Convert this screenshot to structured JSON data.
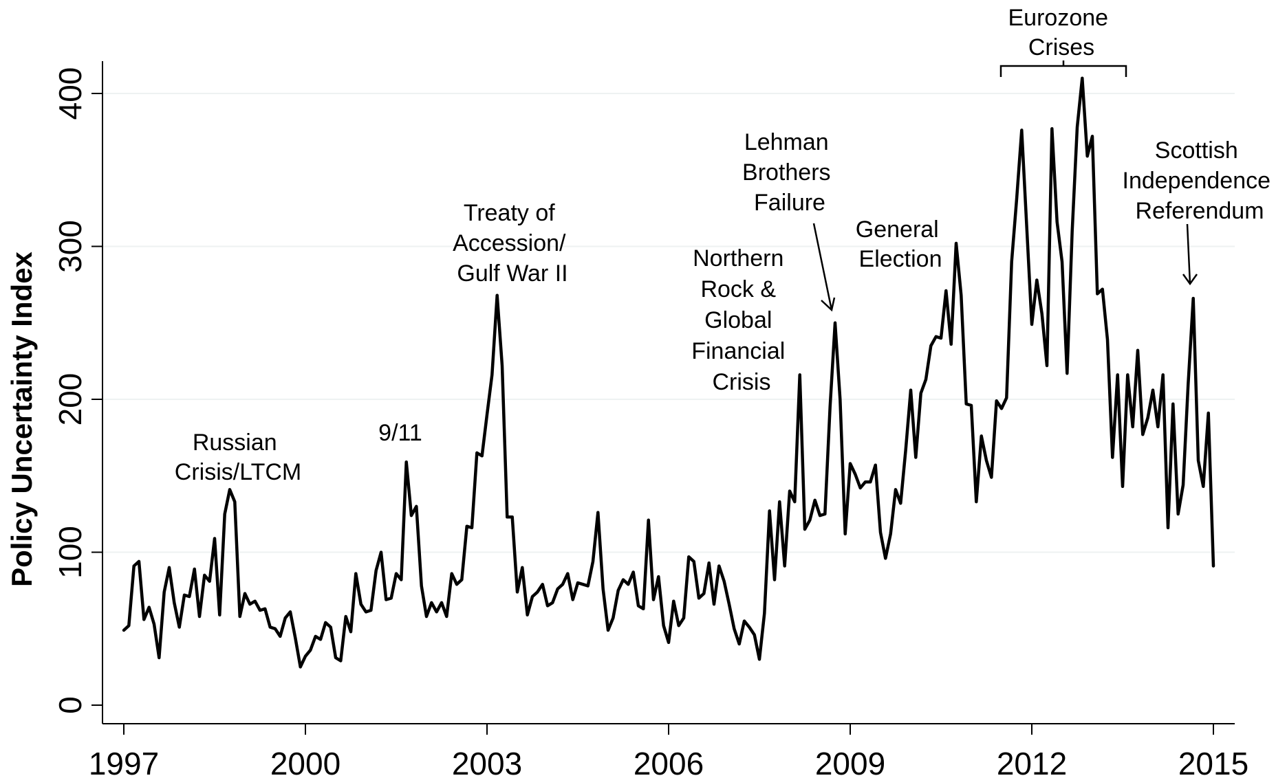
{
  "chart_data": {
    "type": "line",
    "title": "",
    "xlabel": "",
    "ylabel": "Policy Uncertainty Index",
    "xlim": [
      1997,
      2015.1
    ],
    "ylim": [
      -8,
      423
    ],
    "grid": true,
    "x_ticks": [
      1997,
      2000,
      2003,
      2006,
      2009,
      2012,
      2015
    ],
    "x_tick_labels": [
      "1997",
      "2000",
      "2003",
      "2006",
      "2009",
      "2012",
      "2015"
    ],
    "y_ticks": [
      0,
      100,
      200,
      300,
      400
    ],
    "y_tick_labels": [
      "0",
      "100",
      "200",
      "300",
      "400"
    ],
    "series": [
      {
        "frequency": "monthly",
        "start": "1997-01",
        "values": [
          49,
          52,
          91,
          94,
          56,
          64,
          53,
          31,
          74,
          90,
          67,
          51,
          72,
          71,
          89,
          58,
          85,
          81,
          109,
          59,
          125,
          141,
          133,
          58,
          73,
          66,
          68,
          62,
          63,
          51,
          50,
          45,
          57,
          61,
          44,
          25,
          32,
          36,
          45,
          43,
          54,
          51,
          31,
          29,
          58,
          48,
          86,
          66,
          61,
          62,
          88,
          100,
          69,
          70,
          86,
          82,
          159,
          124,
          130,
          78,
          58,
          67,
          61,
          67,
          58,
          86,
          79,
          82,
          117,
          116,
          165,
          163,
          190,
          216,
          268,
          222,
          123,
          123,
          74,
          90,
          59,
          71,
          74,
          79,
          65,
          67,
          76,
          79,
          86,
          69,
          80,
          79,
          78,
          94,
          126,
          76,
          49,
          57,
          75,
          82,
          79,
          87,
          65,
          63,
          121,
          69,
          84,
          52,
          41,
          68,
          52,
          57,
          97,
          94,
          70,
          73,
          93,
          66,
          91,
          81,
          66,
          50,
          40,
          55,
          51,
          46,
          30,
          60,
          127,
          82,
          133,
          91,
          140,
          133,
          216,
          115,
          121,
          134,
          124,
          125,
          195,
          250,
          200,
          112,
          158,
          151,
          142,
          146,
          146,
          157,
          113,
          96,
          112,
          141,
          132,
          167,
          206,
          162,
          204,
          213,
          235,
          241,
          240,
          271,
          236,
          302,
          268,
          197,
          196,
          133,
          176,
          160,
          149,
          199,
          194,
          201,
          290,
          331,
          376,
          312,
          249,
          278,
          256,
          222,
          377,
          316,
          290,
          217,
          310,
          378,
          410,
          359,
          372,
          269,
          272,
          239,
          162,
          216,
          143,
          216,
          182,
          232,
          177,
          188,
          206,
          182,
          216,
          116,
          197,
          125,
          144,
          210,
          266,
          160,
          143,
          191,
          91
        ]
      }
    ],
    "annotations": [
      {
        "lines": [
          "Russian",
          "Crisis/LTCM"
        ]
      },
      {
        "lines": [
          "9/11"
        ]
      },
      {
        "lines": [
          "Treaty of",
          "Accession/",
          "Gulf War II"
        ]
      },
      {
        "lines": [
          "Northern",
          "Rock &",
          "Global",
          "Financial",
          "Crisis"
        ]
      },
      {
        "lines": [
          "Lehman",
          "Brothers",
          "Failure"
        ]
      },
      {
        "lines": [
          "General",
          "Election"
        ]
      },
      {
        "lines": [
          "Eurozone",
          "Crises"
        ]
      },
      {
        "lines": [
          "Scottish",
          "Independence",
          "Referendum"
        ]
      }
    ],
    "colors": {
      "line": "#000000",
      "grid": "#eef2f2",
      "axis": "#000000"
    }
  }
}
